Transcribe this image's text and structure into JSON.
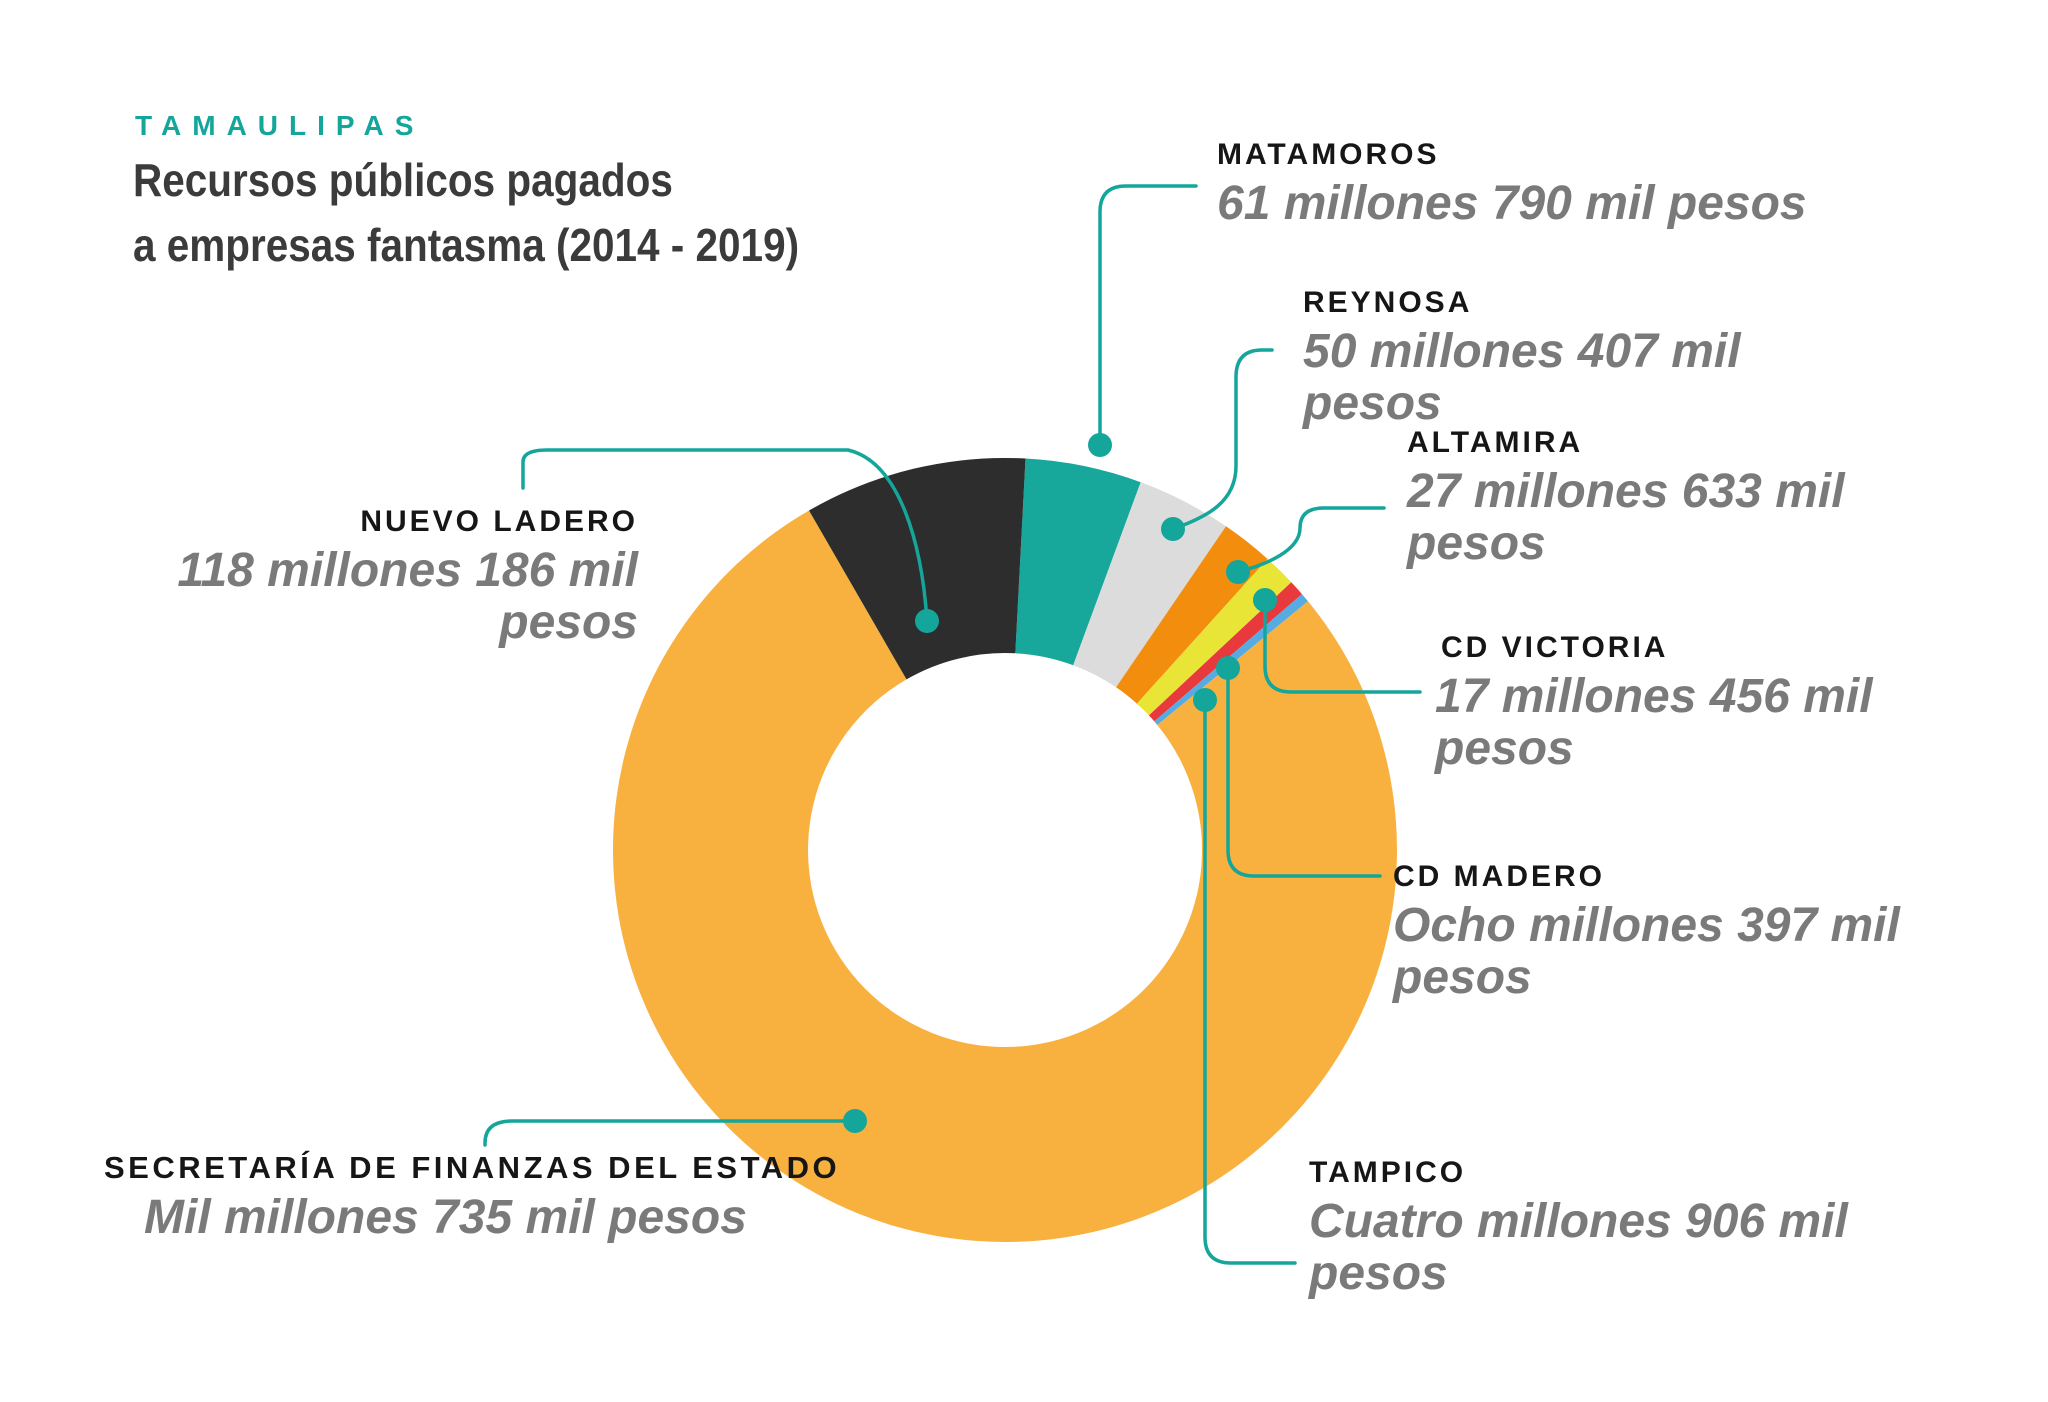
{
  "accent_color": "#14A59B",
  "background_color": "#FFFFFF",
  "header": {
    "kicker": "TAMAULIPAS",
    "title_line1": "Recursos públicos pagados",
    "title_line2": "a empresas fantasma (2014 - 2019)",
    "title_color": "#3B3B3B"
  },
  "chart_data": {
    "type": "pie",
    "donut": true,
    "title": "Recursos públicos pagados a empresas fantasma (2014 - 2019)",
    "subtitle": "TAMAULIPAS",
    "unit": "millones de pesos",
    "start_angle_deg": 3,
    "clockwise": true,
    "legend_position": "callouts-around-chart",
    "slices": [
      {
        "label": "MATAMOROS",
        "value_text": "61 millones 790 mil pesos",
        "value_millions": 61.79,
        "color": "#17A79B"
      },
      {
        "label": "REYNOSA",
        "value_text": "50 millones 407 mil pesos",
        "value_millions": 50.407,
        "color": "#DCDCDC"
      },
      {
        "label": "ALTAMIRA",
        "value_text": "27 millones 633 mil pesos",
        "value_millions": 27.633,
        "color": "#F28D0E"
      },
      {
        "label": "CD VICTORIA",
        "value_text": "17 millones 456 mil pesos",
        "value_millions": 17.456,
        "color": "#E9E536"
      },
      {
        "label": "CD MADERO",
        "value_text": "Ocho millones 397 mil pesos",
        "value_millions": 8.397,
        "color": "#E8393C"
      },
      {
        "label": "TAMPICO",
        "value_text": "Cuatro millones 906 mil pesos",
        "value_millions": 4.906,
        "color": "#55ACE3"
      },
      {
        "label": "SECRETARÍA DE FINANZAS DEL ESTADO",
        "value_text": "Mil millones 735 mil pesos",
        "value_millions": 1000.735,
        "color": "#F8B13F"
      },
      {
        "label": "NUEVO LADERO",
        "value_text": "118 millones 186 mil pesos",
        "value_millions": 118.186,
        "color": "#2D2D2D"
      }
    ]
  },
  "callouts": {
    "matamoros": {
      "label": "MATAMOROS",
      "lines": [
        "61 millones 790 mil pesos"
      ]
    },
    "reynosa": {
      "label": "REYNOSA",
      "lines": [
        "50 millones 407 mil",
        "pesos"
      ]
    },
    "altamira": {
      "label": "ALTAMIRA",
      "lines": [
        "27 millones 633 mil",
        "pesos"
      ]
    },
    "cd_victoria": {
      "label": "CD VICTORIA",
      "lines": [
        "17 millones 456 mil",
        "pesos"
      ]
    },
    "cd_madero": {
      "label": "CD MADERO",
      "lines": [
        "Ocho millones 397 mil",
        "pesos"
      ]
    },
    "tampico": {
      "label": "TAMPICO",
      "lines": [
        "Cuatro millones 906 mil",
        "pesos"
      ]
    },
    "nuevo_ladero": {
      "label": "NUEVO LADERO",
      "lines": [
        "118 millones 186 mil",
        "pesos"
      ]
    },
    "secretaria": {
      "label": "SECRETARÍA DE FINANZAS DEL ESTADO",
      "lines": [
        "Mil millones 735 mil pesos"
      ]
    }
  }
}
